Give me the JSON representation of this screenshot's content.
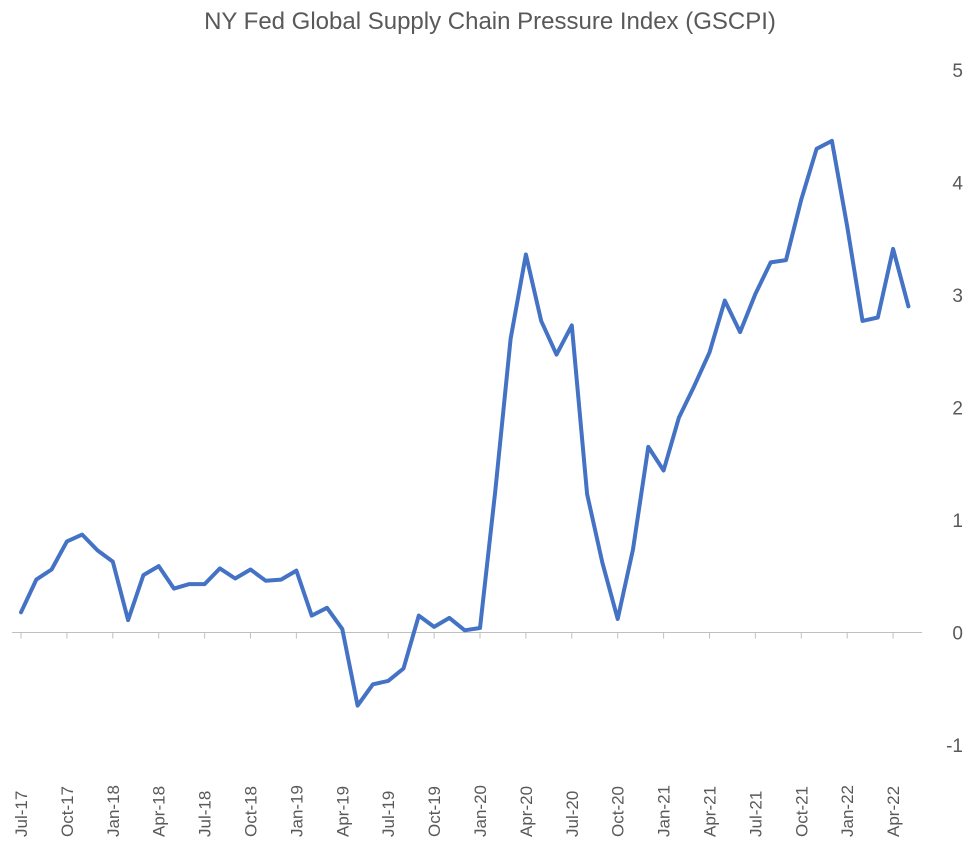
{
  "chart_data": {
    "type": "line",
    "title": "NY Fed Global Supply Chain Pressure Index (GSCPI)",
    "xlabel": "",
    "ylabel": "",
    "ylim": [
      -1,
      5
    ],
    "y_ticks": [
      "-1",
      "0",
      "1",
      "2",
      "3",
      "4",
      "5"
    ],
    "y_tick_values": [
      -1,
      0,
      1,
      2,
      3,
      4,
      5
    ],
    "y_axis_side": "right",
    "grid": false,
    "legend": "none",
    "x_tick_labels": [
      "Jul-17",
      "Oct-17",
      "Jan-18",
      "Apr-18",
      "Jul-18",
      "Oct-18",
      "Jan-19",
      "Apr-19",
      "Jul-19",
      "Oct-19",
      "Jan-20",
      "Apr-20",
      "Jul-20",
      "Oct-20",
      "Jan-21",
      "Apr-21",
      "Jul-21",
      "Oct-21",
      "Jan-22",
      "Apr-22"
    ],
    "x_tick_every": 3,
    "x": [
      "Jul-17",
      "Aug-17",
      "Sep-17",
      "Oct-17",
      "Nov-17",
      "Dec-17",
      "Jan-18",
      "Feb-18",
      "Mar-18",
      "Apr-18",
      "May-18",
      "Jun-18",
      "Jul-18",
      "Aug-18",
      "Sep-18",
      "Oct-18",
      "Nov-18",
      "Dec-18",
      "Jan-19",
      "Feb-19",
      "Mar-19",
      "Apr-19",
      "May-19",
      "Jun-19",
      "Jul-19",
      "Aug-19",
      "Sep-19",
      "Oct-19",
      "Nov-19",
      "Dec-19",
      "Jan-20",
      "Feb-20",
      "Mar-20",
      "Apr-20",
      "May-20",
      "Jun-20",
      "Jul-20",
      "Aug-20",
      "Sep-20",
      "Oct-20",
      "Nov-20",
      "Dec-20",
      "Jan-21",
      "Feb-21",
      "Mar-21",
      "Apr-21",
      "May-21",
      "Jun-21",
      "Jul-21",
      "Aug-21",
      "Sep-21",
      "Oct-21",
      "Nov-21",
      "Dec-21",
      "Jan-22",
      "Feb-22",
      "Mar-22",
      "Apr-22",
      "May-22"
    ],
    "series": [
      {
        "name": "",
        "color": "#4472C4",
        "values": [
          0.18,
          0.47,
          0.56,
          0.81,
          0.87,
          0.73,
          0.63,
          0.11,
          0.51,
          0.59,
          0.39,
          0.43,
          0.43,
          0.57,
          0.48,
          0.56,
          0.46,
          0.47,
          0.55,
          0.15,
          0.22,
          0.03,
          -0.65,
          -0.46,
          -0.43,
          -0.32,
          0.15,
          0.05,
          0.13,
          0.02,
          0.04,
          1.26,
          2.61,
          3.36,
          2.77,
          2.47,
          2.73,
          1.23,
          0.62,
          0.12,
          0.74,
          1.65,
          1.44,
          1.91,
          2.19,
          2.49,
          2.95,
          2.67,
          3.01,
          3.29,
          3.31,
          3.85,
          4.3,
          4.37,
          3.61,
          2.77,
          2.8,
          3.41,
          2.9
        ]
      }
    ]
  }
}
